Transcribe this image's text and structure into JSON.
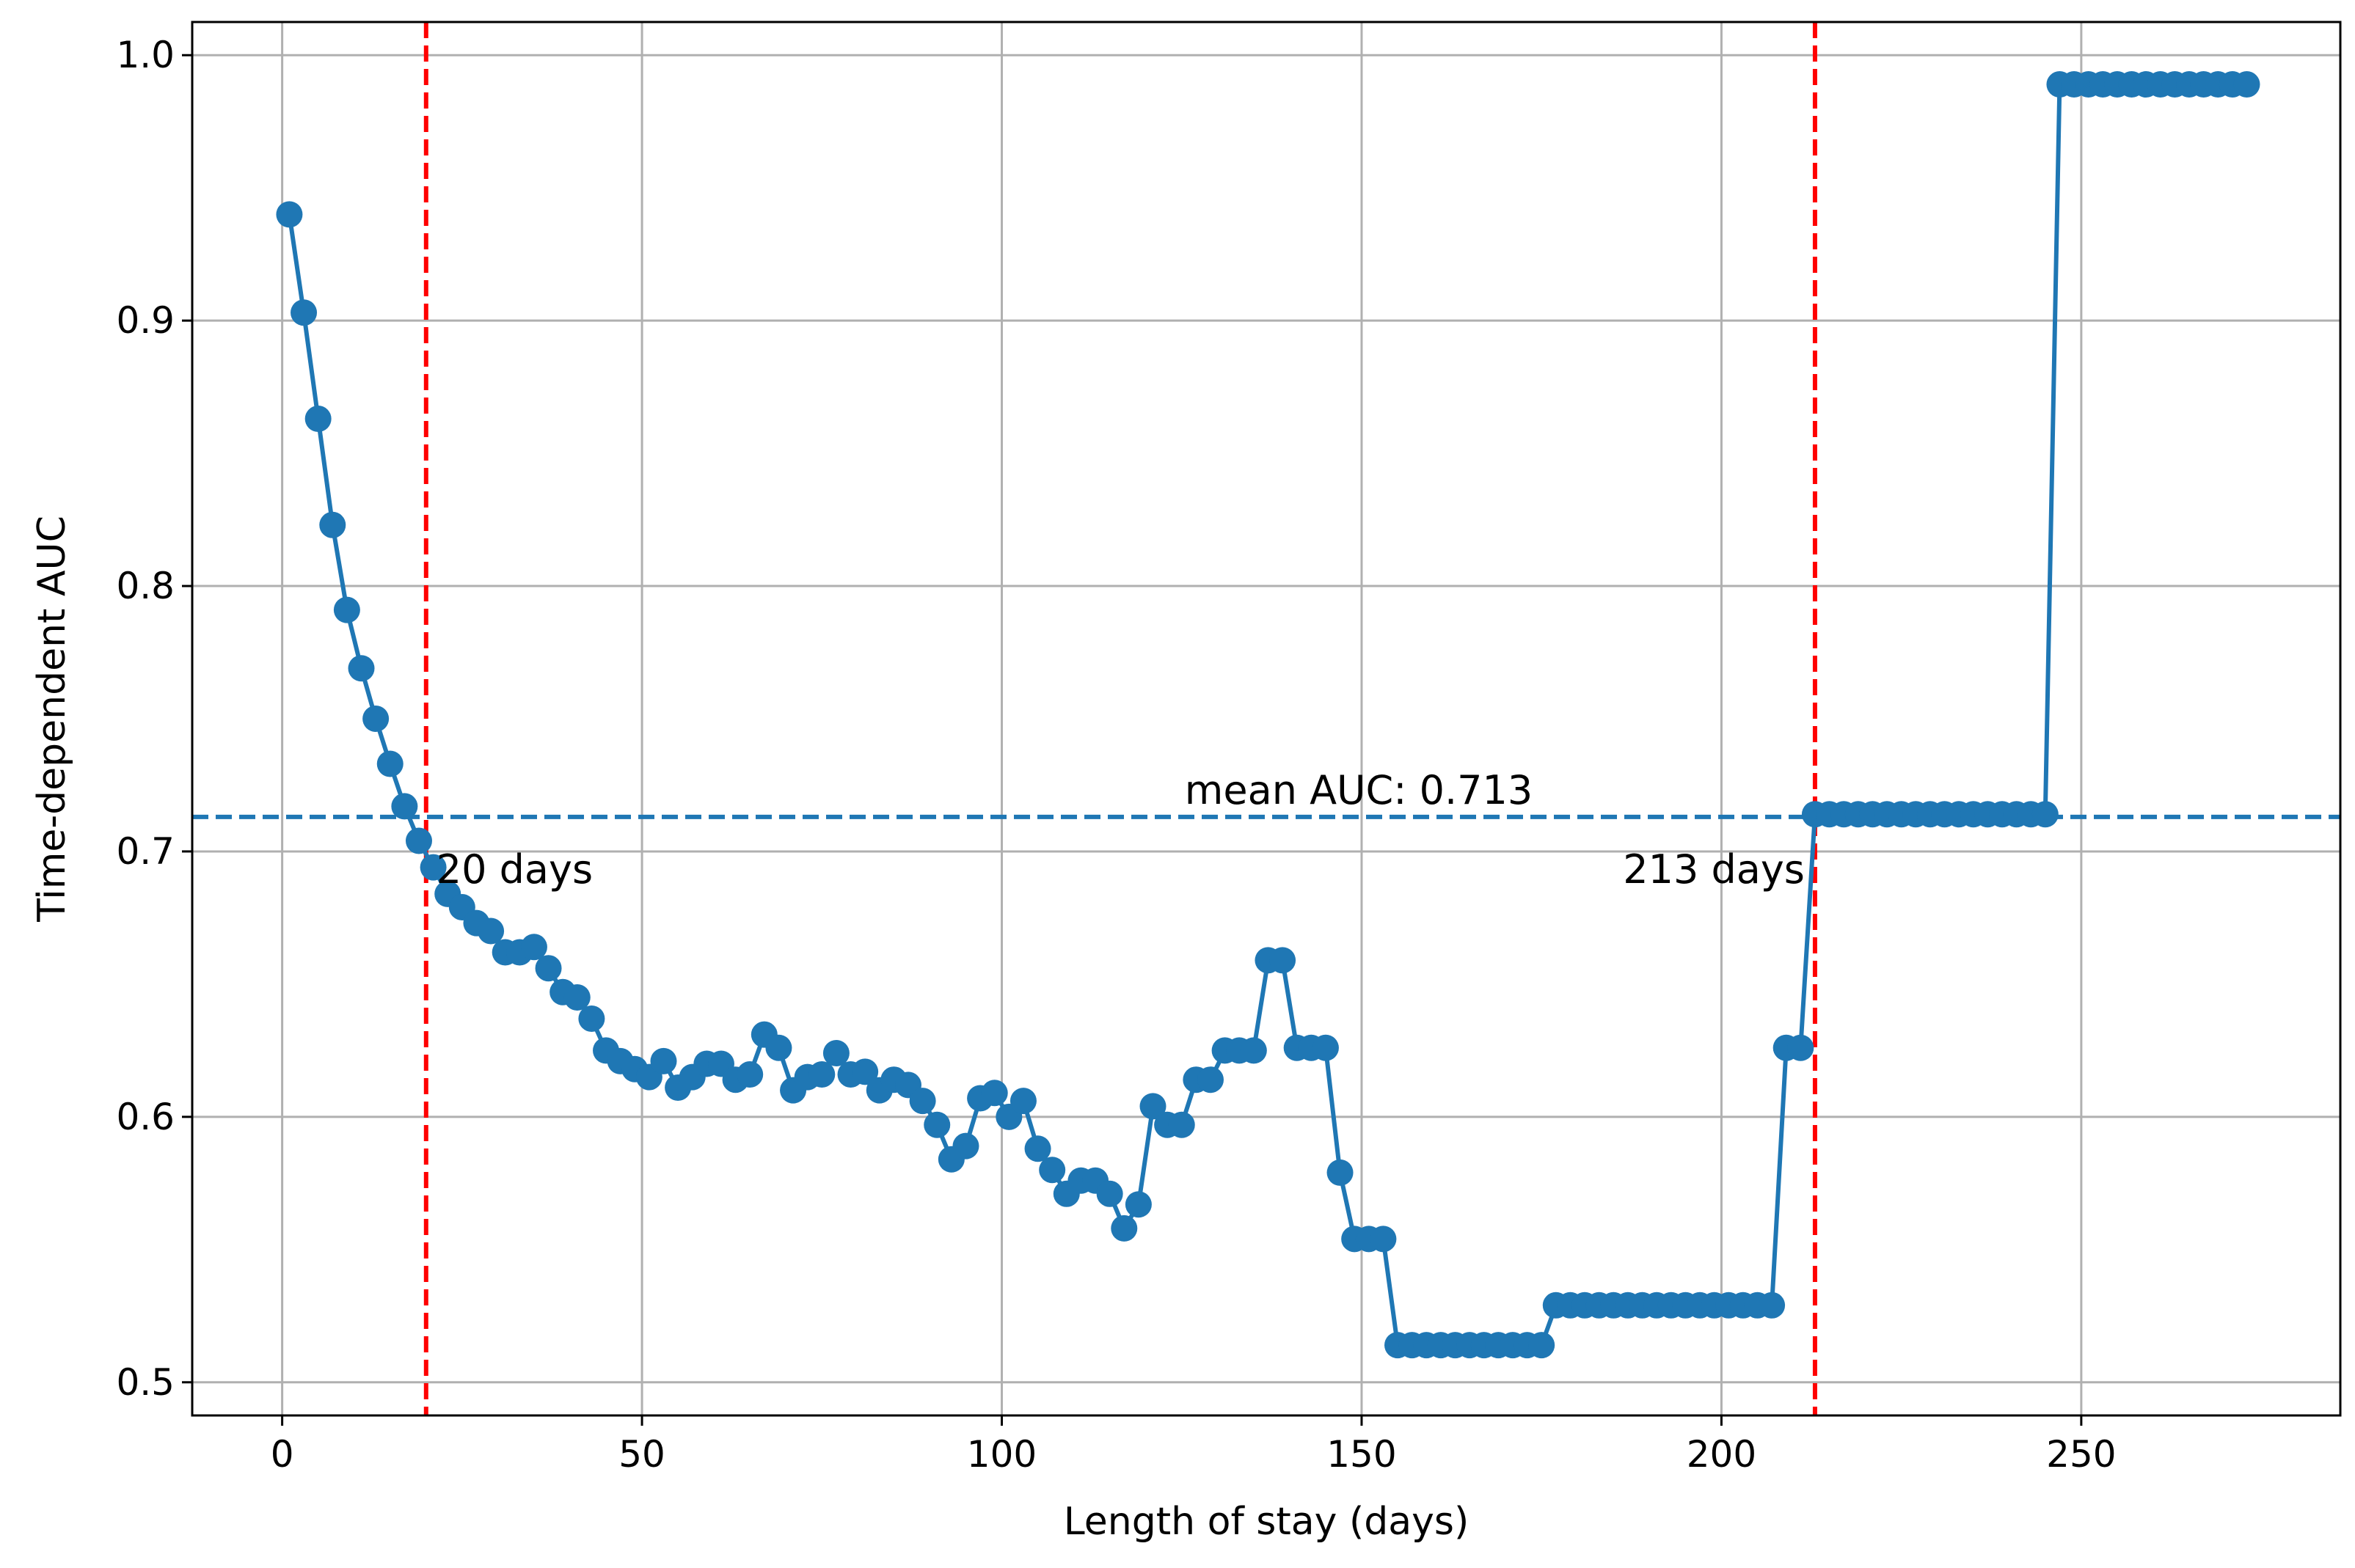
{
  "chart_data": {
    "type": "line",
    "title": "",
    "xlabel": "Length of stay (days)",
    "ylabel": "Time-dependent AUC",
    "xlim": [
      -12.5,
      286
    ],
    "ylim": [
      0.4875,
      1.0125
    ],
    "xticks": [
      0,
      50,
      100,
      150,
      200,
      250
    ],
    "yticks": [
      0.5,
      0.6,
      0.7,
      0.8,
      0.9,
      1.0
    ],
    "xtick_labels": [
      "0",
      "50",
      "100",
      "150",
      "200",
      "250"
    ],
    "ytick_labels": [
      "0.5",
      "0.6",
      "0.7",
      "0.8",
      "0.9",
      "1.0"
    ],
    "grid": true,
    "colors": {
      "series": "#1f77b4",
      "vlines": "#ff0000",
      "hline": "#1f77b4",
      "grid": "#b0b0b0"
    },
    "series": [
      {
        "x": [
          1,
          3,
          5,
          7,
          9,
          11,
          13,
          15,
          17,
          19,
          21,
          23,
          25,
          27,
          29,
          31,
          33,
          35,
          37,
          39,
          41,
          43,
          45,
          47,
          49,
          51,
          53,
          55,
          57,
          59,
          61,
          63,
          65,
          67,
          69,
          71,
          73,
          75,
          77,
          79,
          81,
          83,
          85,
          87,
          89,
          91,
          93,
          95,
          97,
          99,
          101,
          103,
          105,
          107,
          109,
          111,
          113,
          115,
          117,
          119,
          121,
          123,
          125,
          127,
          129,
          131,
          133,
          135,
          137,
          139,
          141,
          143,
          145,
          147,
          149,
          151,
          153,
          155,
          157,
          159,
          161,
          163,
          165,
          167,
          169,
          171,
          173,
          175,
          177,
          179,
          181,
          183,
          185,
          187,
          189,
          191,
          193,
          195,
          197,
          199,
          201,
          203,
          205,
          207,
          209,
          211,
          213,
          215,
          217,
          219,
          221,
          223,
          225,
          227,
          229,
          231,
          233,
          235,
          237,
          239,
          241,
          243,
          245,
          247,
          249,
          251,
          253,
          255,
          257,
          259,
          261,
          263,
          265,
          267,
          269,
          271,
          273
        ],
        "y": [
          0.94,
          0.903,
          0.863,
          0.823,
          0.791,
          0.769,
          0.75,
          0.733,
          0.717,
          0.704,
          0.694,
          0.684,
          0.679,
          0.673,
          0.67,
          0.662,
          0.662,
          0.664,
          0.656,
          0.647,
          0.645,
          0.637,
          0.625,
          0.621,
          0.618,
          0.615,
          0.621,
          0.611,
          0.615,
          0.62,
          0.62,
          0.614,
          0.616,
          0.631,
          0.626,
          0.61,
          0.615,
          0.616,
          0.624,
          0.616,
          0.617,
          0.61,
          0.614,
          0.612,
          0.606,
          0.597,
          0.584,
          0.589,
          0.607,
          0.609,
          0.6,
          0.606,
          0.588,
          0.58,
          0.571,
          0.576,
          0.576,
          0.571,
          0.558,
          0.567,
          0.604,
          0.597,
          0.597,
          0.614,
          0.614,
          0.625,
          0.625,
          0.625,
          0.659,
          0.659,
          0.626,
          0.626,
          0.626,
          0.579,
          0.554,
          0.554,
          0.554,
          0.514,
          0.514,
          0.514,
          0.514,
          0.514,
          0.514,
          0.514,
          0.514,
          0.514,
          0.514,
          0.514,
          0.529,
          0.529,
          0.529,
          0.529,
          0.529,
          0.529,
          0.529,
          0.529,
          0.529,
          0.529,
          0.529,
          0.529,
          0.529,
          0.529,
          0.529,
          0.529,
          0.626,
          0.626,
          0.714,
          0.714,
          0.714,
          0.714,
          0.714,
          0.714,
          0.714,
          0.714,
          0.714,
          0.714,
          0.714,
          0.714,
          0.714,
          0.714,
          0.714,
          0.714,
          0.714,
          0.989,
          0.989,
          0.989,
          0.989,
          0.989,
          0.989,
          0.989,
          0.989,
          0.989,
          0.989,
          0.989,
          0.989,
          0.989,
          0.989
        ]
      }
    ],
    "vlines": [
      {
        "x": 20,
        "label": "20 days"
      },
      {
        "x": 213,
        "label": "213 days"
      }
    ],
    "hline": {
      "y": 0.713,
      "label": "mean AUC: 0.713"
    }
  }
}
